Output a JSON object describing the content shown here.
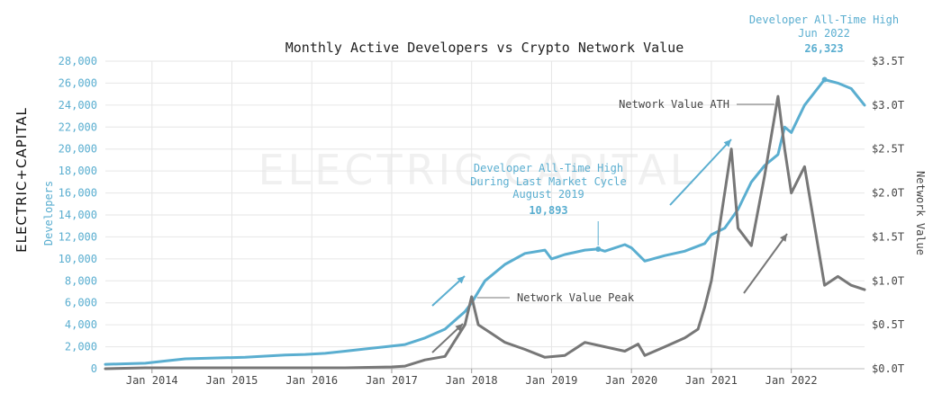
{
  "brand": {
    "name": "ELECTRIC",
    "suffix": "CAPITAL"
  },
  "watermark": "ELECTRIC CAPITAL",
  "colors": {
    "developers": "#5aaed0",
    "network_value": "#777777",
    "text": "#222222",
    "grid": "#e6e6e6"
  },
  "chart_data": {
    "type": "line",
    "title": "Monthly Active Developers vs Crypto Network Value",
    "ylabel": "Developers",
    "y2label": "Network Value",
    "ylim": [
      0,
      28000
    ],
    "y2lim": [
      0,
      3.5
    ],
    "xlim": [
      "2013-06",
      "2022-12"
    ],
    "x_ticks": [
      "Jan 2014",
      "Jan 2015",
      "Jan 2016",
      "Jan 2017",
      "Jan 2018",
      "Jan 2019",
      "Jan 2020",
      "Jan 2021",
      "Jan 2022"
    ],
    "y_ticks": [
      "0",
      "2,000",
      "4,000",
      "6,000",
      "8,000",
      "10,000",
      "12,000",
      "14,000",
      "16,000",
      "18,000",
      "20,000",
      "22,000",
      "24,000",
      "26,000",
      "28,000"
    ],
    "y2_ticks": [
      "$0.0T",
      "$0.5T",
      "$1.0T",
      "$1.5T",
      "$2.0T",
      "$2.5T",
      "$3.0T",
      "$3.5T"
    ],
    "grid": true,
    "series": [
      {
        "name": "Developers",
        "axis": "left",
        "x": [
          "2013-06",
          "2013-09",
          "2013-12",
          "2014-03",
          "2014-06",
          "2014-09",
          "2014-12",
          "2015-03",
          "2015-06",
          "2015-09",
          "2015-12",
          "2016-03",
          "2016-06",
          "2016-09",
          "2016-12",
          "2017-03",
          "2017-06",
          "2017-09",
          "2017-12",
          "2018-01",
          "2018-03",
          "2018-06",
          "2018-09",
          "2018-12",
          "2019-01",
          "2019-03",
          "2019-06",
          "2019-08",
          "2019-09",
          "2019-12",
          "2020-01",
          "2020-03",
          "2020-06",
          "2020-09",
          "2020-12",
          "2021-01",
          "2021-03",
          "2021-05",
          "2021-07",
          "2021-09",
          "2021-11",
          "2021-12",
          "2022-01",
          "2022-03",
          "2022-06",
          "2022-08",
          "2022-10",
          "2022-12"
        ],
        "values": [
          400,
          450,
          500,
          700,
          900,
          950,
          1000,
          1050,
          1150,
          1250,
          1300,
          1400,
          1600,
          1800,
          2000,
          2200,
          2800,
          3600,
          5200,
          6000,
          8000,
          9500,
          10500,
          10800,
          10000,
          10400,
          10800,
          10893,
          10700,
          11300,
          11000,
          9800,
          10300,
          10700,
          11400,
          12200,
          12800,
          14500,
          17000,
          18500,
          19500,
          22000,
          21500,
          24000,
          26323,
          26000,
          25500,
          24000
        ]
      },
      {
        "name": "Network Value",
        "axis": "right",
        "x": [
          "2013-06",
          "2013-12",
          "2014-06",
          "2015-06",
          "2016-06",
          "2017-01",
          "2017-03",
          "2017-06",
          "2017-09",
          "2017-12",
          "2018-01",
          "2018-02",
          "2018-04",
          "2018-06",
          "2018-09",
          "2018-12",
          "2019-03",
          "2019-06",
          "2019-09",
          "2019-12",
          "2020-02",
          "2020-03",
          "2020-06",
          "2020-09",
          "2020-11",
          "2020-12",
          "2021-01",
          "2021-02",
          "2021-04",
          "2021-05",
          "2021-07",
          "2021-09",
          "2021-11",
          "2021-12",
          "2022-01",
          "2022-03",
          "2022-05",
          "2022-06",
          "2022-08",
          "2022-10",
          "2022-12"
        ],
        "values": [
          0.0,
          0.01,
          0.01,
          0.01,
          0.01,
          0.02,
          0.03,
          0.1,
          0.14,
          0.5,
          0.82,
          0.5,
          0.4,
          0.3,
          0.22,
          0.13,
          0.15,
          0.3,
          0.25,
          0.2,
          0.28,
          0.15,
          0.25,
          0.35,
          0.45,
          0.7,
          1.0,
          1.5,
          2.5,
          1.6,
          1.4,
          2.2,
          3.1,
          2.5,
          2.0,
          2.3,
          1.4,
          0.95,
          1.05,
          0.95,
          0.9
        ]
      }
    ],
    "annotations": [
      {
        "label": "Developer All-Time High",
        "sub": "Jun 2022",
        "value": "26,323",
        "x": "2022-06",
        "y": 26323
      },
      {
        "label": "Developer All-Time High",
        "sub": "During Last Market Cycle",
        "sub2": "August 2019",
        "value": "10,893",
        "x": "2019-08",
        "y": 10893
      },
      {
        "label": "Network Value ATH",
        "x": "2021-11",
        "y2": 3.1
      },
      {
        "label": "Network Value Peak",
        "x": "2018-01",
        "y2": 0.82
      }
    ]
  }
}
